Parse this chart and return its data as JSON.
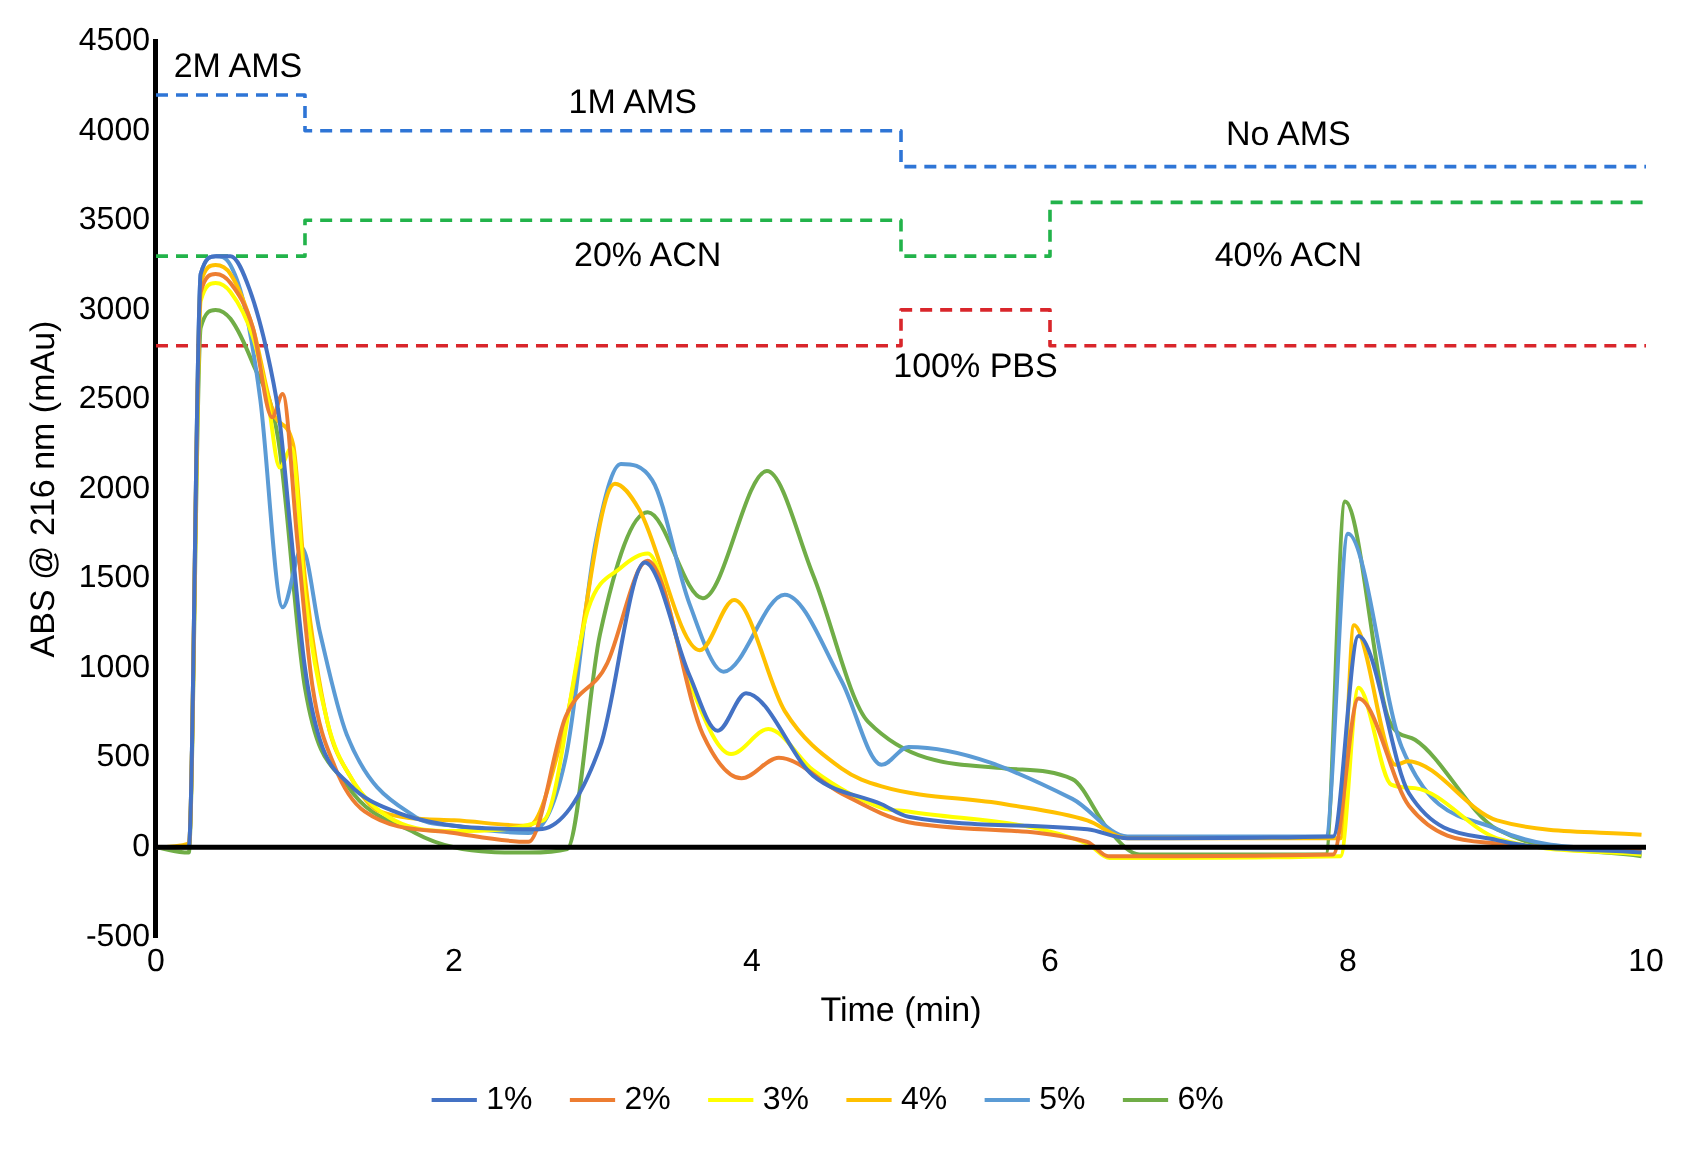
{
  "chart_data": {
    "type": "line",
    "xlabel": "Time (min)",
    "ylabel": "ABS @ 216 nm (mAu)",
    "xlim": [
      0,
      10
    ],
    "xticks": [
      0,
      2,
      4,
      6,
      8,
      10
    ],
    "ylim": [
      -500,
      4500
    ],
    "yticks": [
      -500,
      0,
      500,
      1000,
      1500,
      2000,
      2500,
      3000,
      3500,
      4000,
      4500
    ],
    "grid": false,
    "legend": "bottom",
    "marker": "none",
    "line_style": "solid",
    "ref_lines": [
      {
        "axis": "y",
        "value": 0,
        "color": "#000000"
      }
    ],
    "annotations": [
      "2M AMS",
      "1M AMS",
      "No AMS",
      "20% ACN",
      "40% ACN",
      "100% PBS"
    ],
    "series": [
      {
        "name": "1%",
        "color": "#4472c4",
        "x": [
          0,
          0.22,
          0.3,
          0.4,
          0.5,
          0.63,
          0.77,
          0.83,
          0.9,
          1.0,
          1.1,
          1.3,
          1.6,
          2.0,
          2.57,
          2.98,
          3.28,
          3.58,
          3.77,
          3.96,
          4.41,
          4.87,
          5.05,
          6.25,
          6.52,
          7.9,
          8.07,
          8.41,
          9.0,
          9.97
        ],
        "values": [
          0,
          0,
          3200,
          3300,
          3300,
          3110,
          2670,
          2380,
          1800,
          1000,
          600,
          350,
          200,
          120,
          100,
          560,
          1590,
          960,
          650,
          860,
          400,
          240,
          170,
          100,
          50,
          60,
          1180,
          300,
          40,
          -30
        ]
      },
      {
        "name": "2%",
        "color": "#ed7d31",
        "x": [
          0,
          0.22,
          0.3,
          0.4,
          0.5,
          0.65,
          0.78,
          0.85,
          0.95,
          1.05,
          1.2,
          1.4,
          2.0,
          2.5,
          2.75,
          3.03,
          3.24,
          3.3,
          3.67,
          3.93,
          4.18,
          4.6,
          5.05,
          6.25,
          6.39,
          7.9,
          8.07,
          8.41,
          9.0,
          9.97
        ],
        "values": [
          0,
          0,
          3100,
          3200,
          3150,
          2900,
          2400,
          2530,
          1700,
          900,
          450,
          200,
          80,
          30,
          730,
          1030,
          1550,
          1600,
          630,
          385,
          500,
          300,
          140,
          30,
          -50,
          -40,
          830,
          230,
          20,
          -10
        ]
      },
      {
        "name": "3%",
        "color": "#ffff00",
        "x": [
          0,
          0.22,
          0.3,
          0.4,
          0.5,
          0.65,
          0.75,
          0.83,
          0.91,
          1.0,
          1.15,
          1.3,
          1.6,
          2.0,
          2.6,
          2.9,
          3.12,
          3.3,
          3.58,
          3.86,
          4.11,
          4.41,
          4.87,
          5.05,
          6.25,
          6.4,
          7.95,
          8.07,
          8.29,
          8.45,
          9.0,
          9.97
        ],
        "values": [
          0,
          0,
          3050,
          3150,
          3100,
          2850,
          2500,
          2120,
          2230,
          1400,
          700,
          400,
          150,
          90,
          150,
          1330,
          1560,
          1640,
          920,
          520,
          660,
          430,
          220,
          200,
          20,
          -60,
          -50,
          890,
          350,
          330,
          50,
          -40
        ]
      },
      {
        "name": "4%",
        "color": "#ffc000",
        "x": [
          0,
          0.22,
          0.3,
          0.4,
          0.5,
          0.65,
          0.8,
          0.92,
          1.0,
          1.15,
          1.3,
          1.5,
          2.0,
          2.5,
          2.75,
          3.08,
          3.24,
          3.65,
          3.88,
          4.22,
          4.6,
          4.87,
          5.7,
          6.25,
          6.52,
          7.95,
          8.04,
          8.32,
          8.4,
          9.0,
          9.97
        ],
        "values": [
          0,
          20,
          3150,
          3250,
          3200,
          2900,
          2400,
          2250,
          1500,
          700,
          400,
          200,
          150,
          120,
          700,
          2030,
          1890,
          1100,
          1380,
          760,
          440,
          340,
          240,
          150,
          50,
          50,
          1240,
          460,
          480,
          150,
          70
        ]
      },
      {
        "name": "5%",
        "color": "#5b9bd5",
        "x": [
          0,
          0.22,
          0.3,
          0.4,
          0.5,
          0.6,
          0.7,
          0.85,
          0.98,
          1.1,
          1.28,
          1.74,
          2.0,
          2.5,
          2.75,
          2.95,
          3.12,
          3.33,
          3.58,
          3.81,
          4.22,
          4.6,
          4.87,
          5.05,
          6.15,
          6.52,
          7.85,
          8.0,
          8.36,
          9.0,
          9.97
        ],
        "values": [
          0,
          0,
          3200,
          3300,
          3250,
          3000,
          2500,
          1340,
          1670,
          1200,
          630,
          170,
          120,
          80,
          500,
          1700,
          2140,
          2050,
          1360,
          980,
          1410,
          930,
          460,
          560,
          270,
          60,
          60,
          1750,
          560,
          100,
          -30
        ]
      },
      {
        "name": "6%",
        "color": "#70ad47",
        "x": [
          0,
          0.22,
          0.3,
          0.4,
          0.5,
          0.65,
          0.82,
          1.0,
          1.28,
          1.74,
          2.0,
          2.5,
          2.76,
          2.98,
          3.3,
          3.67,
          4.1,
          4.41,
          4.78,
          5.7,
          6.15,
          6.39,
          6.6,
          7.85,
          7.98,
          8.28,
          8.45,
          9.0,
          9.97
        ],
        "values": [
          0,
          -30,
          2900,
          3000,
          2950,
          2700,
          2280,
          890,
          350,
          80,
          0,
          -30,
          -10,
          1190,
          1870,
          1390,
          2100,
          1520,
          700,
          440,
          380,
          100,
          -40,
          -40,
          1930,
          700,
          600,
          100,
          -50
        ]
      },
      {
        "type": "step",
        "color": "#2e75d6",
        "x": [
          0,
          1,
          5,
          10
        ],
        "values": [
          4200,
          4000,
          3800,
          3800
        ],
        "line_style": "dashed"
      },
      {
        "type": "step",
        "color": "#22b34a",
        "x": [
          0,
          1,
          5,
          6,
          10
        ],
        "values": [
          3300,
          3500,
          3300,
          3600,
          3600
        ],
        "line_style": "dashed"
      },
      {
        "type": "step",
        "color": "#d9262b",
        "x": [
          0,
          5,
          6,
          10
        ],
        "values": [
          2800,
          3000,
          2800,
          2800
        ],
        "line_style": "dashed"
      }
    ]
  }
}
